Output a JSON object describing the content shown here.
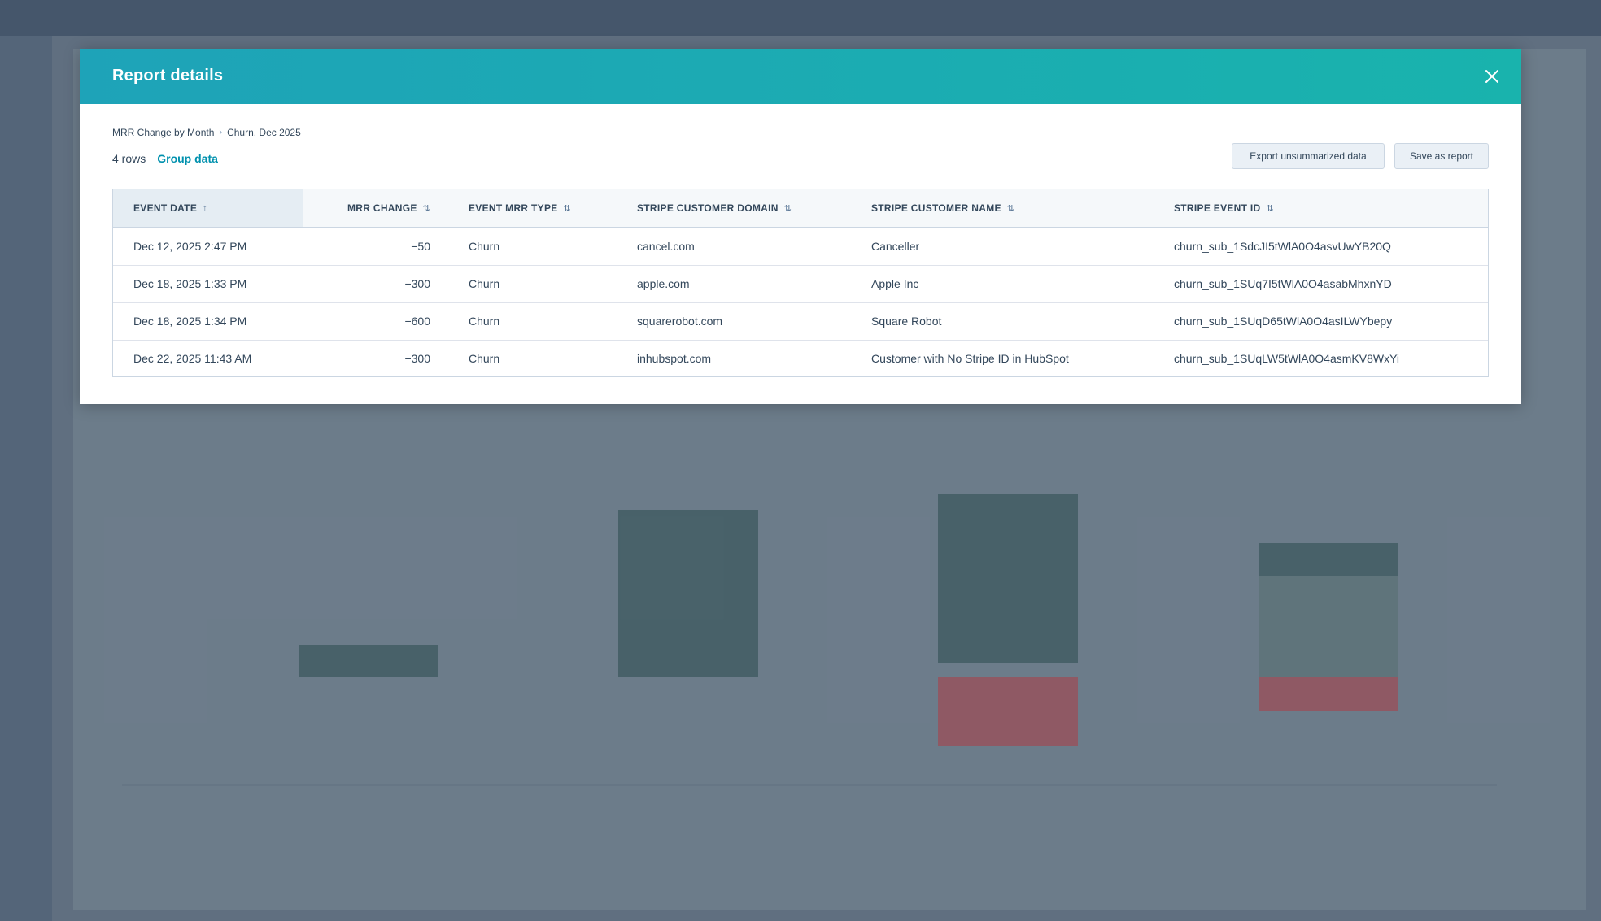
{
  "modal": {
    "title": "Report details",
    "breadcrumb": {
      "report": "MRR Change by Month",
      "segment": "Churn, Dec 2025"
    },
    "row_count": "4 rows",
    "group_data_label": "Group data",
    "export_label": "Export unsummarized data",
    "save_label": "Save as report"
  },
  "table": {
    "columns": [
      {
        "label": "EVENT DATE",
        "sort": "↑"
      },
      {
        "label": "MRR CHANGE",
        "sort": "⇅"
      },
      {
        "label": "EVENT MRR TYPE",
        "sort": "⇅"
      },
      {
        "label": "STRIPE CUSTOMER DOMAIN",
        "sort": "⇅"
      },
      {
        "label": "STRIPE CUSTOMER NAME",
        "sort": "⇅"
      },
      {
        "label": "STRIPE EVENT ID",
        "sort": "⇅"
      }
    ],
    "rows": [
      {
        "event_date": "Dec 12, 2025 2:47 PM",
        "mrr_change": "−50",
        "type": "Churn",
        "domain": "cancel.com",
        "name": "Canceller",
        "event_id": "churn_sub_1SdcJI5tWlA0O4asvUwYB20Q"
      },
      {
        "event_date": "Dec 18, 2025 1:33 PM",
        "mrr_change": "−300",
        "type": "Churn",
        "domain": "apple.com",
        "name": "Apple Inc",
        "event_id": "churn_sub_1SUq7I5tWlA0O4asabMhxnYD"
      },
      {
        "event_date": "Dec 18, 2025 1:34 PM",
        "mrr_change": "−600",
        "type": "Churn",
        "domain": "squarerobot.com",
        "name": "Square Robot",
        "event_id": "churn_sub_1SUqD65tWlA0O4asILWYbepy"
      },
      {
        "event_date": "Dec 22, 2025 11:43 AM",
        "mrr_change": "−300",
        "type": "Churn",
        "domain": "inhubspot.com",
        "name": "Customer with No Stripe ID in HubSpot",
        "event_id": "churn_sub_1SUqLW5tWlA0O4asmKV8WxYi"
      }
    ]
  },
  "colors": {
    "header_start": "#1ea3b8",
    "header_end": "#19b3ad",
    "link": "#0091ae",
    "text": "#33475b"
  }
}
